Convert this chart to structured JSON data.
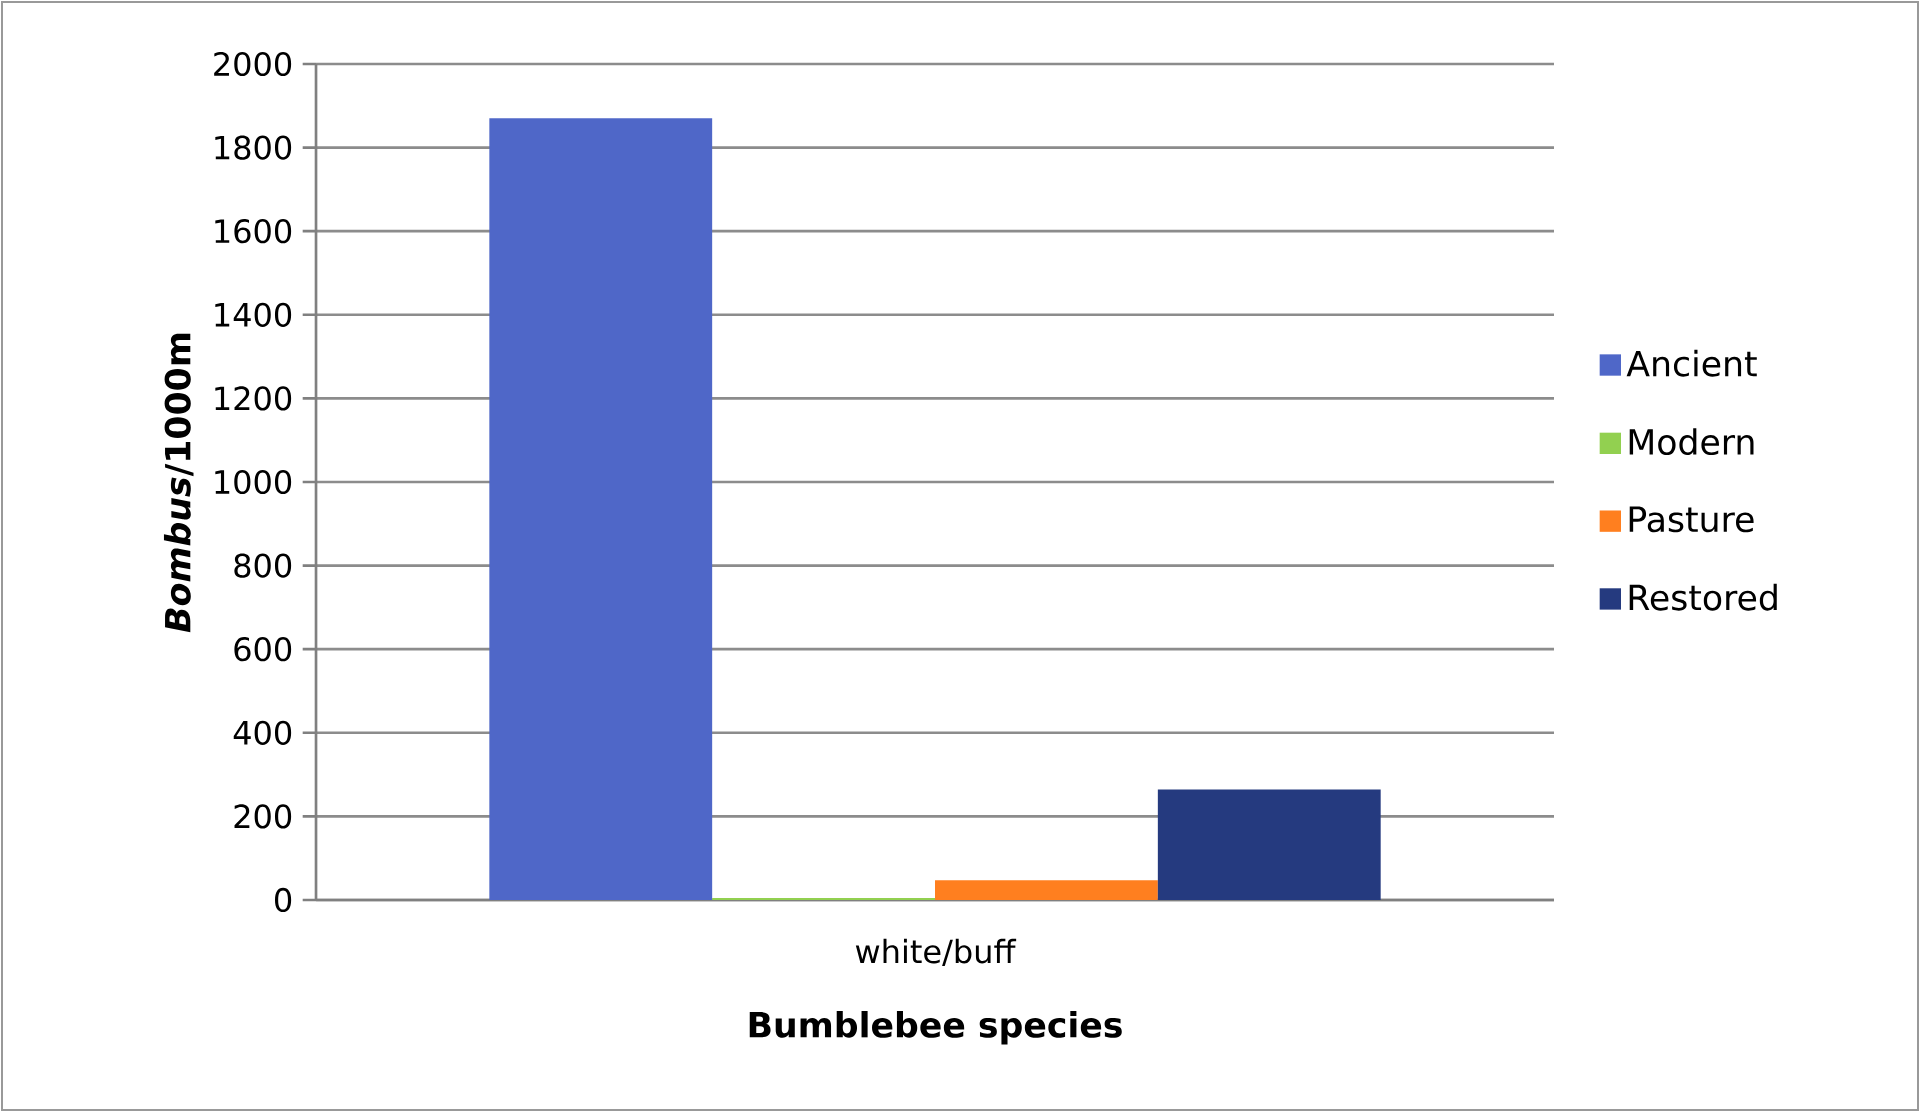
{
  "chart_data": {
    "type": "bar",
    "xlabel": "Bumblebee species",
    "ylabel": "*Bombus*/1000m",
    "categories": [
      "white/buff"
    ],
    "series": [
      {
        "name": "Ancient",
        "color": "#4f67c8",
        "values": [
          1870
        ]
      },
      {
        "name": "Modern",
        "color": "#92d050",
        "values": [
          5
        ]
      },
      {
        "name": "Pasture",
        "color": "#ff7f1f",
        "values": [
          47
        ]
      },
      {
        "name": "Restored",
        "color": "#253a7f",
        "values": [
          264
        ]
      }
    ],
    "ylim": [
      0,
      2000
    ],
    "yticks": [
      0,
      200,
      400,
      600,
      800,
      1000,
      1200,
      1400,
      1600,
      1800,
      2000
    ],
    "grid": "y",
    "legend": "right"
  }
}
